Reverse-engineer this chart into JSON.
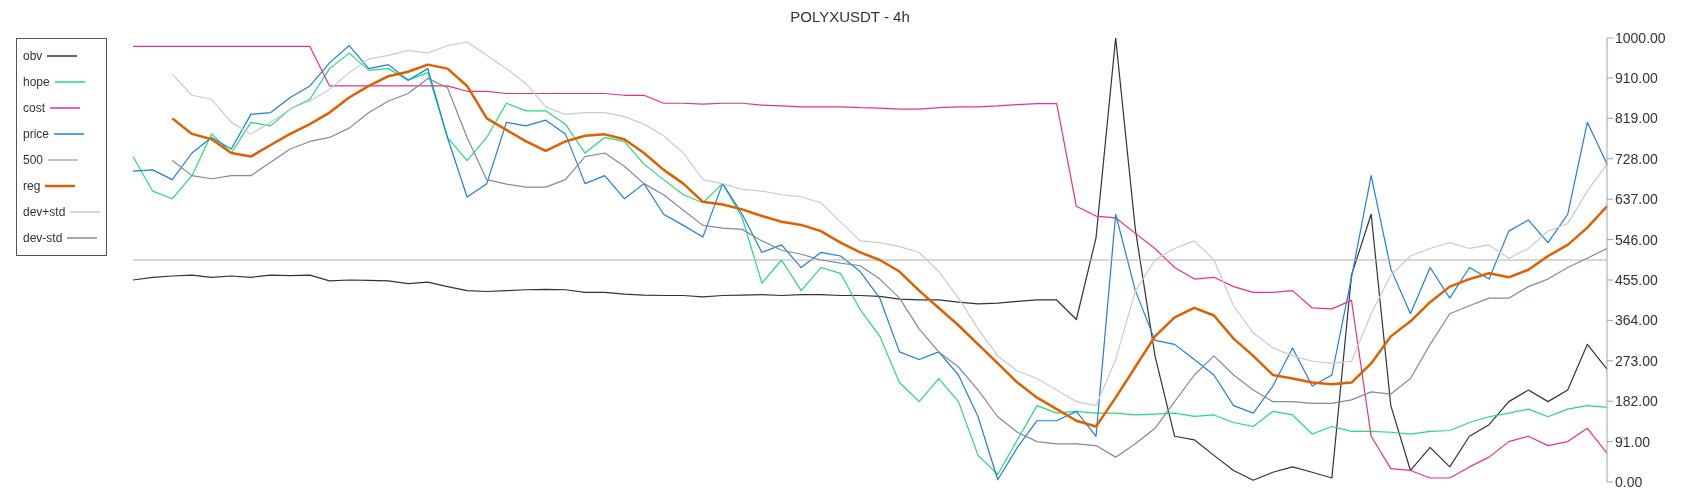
{
  "chart_data": {
    "type": "line",
    "title": "POLYXUSDT - 4h",
    "categories": [
      null,
      null,
      null,
      null,
      null,
      null,
      null,
      null,
      null,
      null,
      null,
      null,
      null,
      null,
      null,
      null,
      null,
      null,
      null,
      null,
      null,
      null,
      null,
      null,
      null,
      null,
      null,
      null,
      null,
      null,
      null,
      null,
      null,
      null,
      null,
      null,
      null,
      null,
      null,
      null,
      null,
      null,
      null,
      null,
      null,
      null,
      null,
      null,
      null,
      null,
      null,
      null,
      null,
      null,
      null,
      null,
      null,
      null,
      null,
      null,
      null,
      null,
      null,
      null,
      null,
      null,
      null,
      null,
      null,
      null,
      null,
      null,
      null,
      null,
      null,
      null
    ],
    "series": [
      {
        "name": "obv",
        "color": "#333333",
        "values": [
          455,
          461,
          464,
          466,
          461,
          464,
          461,
          466,
          465,
          466,
          453,
          455,
          454,
          453,
          447,
          450,
          440,
          431,
          429,
          431,
          433,
          434,
          433,
          427,
          427,
          423,
          421,
          420,
          420,
          417,
          420,
          421,
          422,
          420,
          422,
          422,
          420,
          420,
          418,
          412,
          410,
          410,
          405,
          401,
          403,
          407,
          410,
          410,
          366,
          550,
          1000,
          569,
          284,
          103,
          95,
          60,
          26,
          4,
          22,
          34,
          22,
          9,
          466,
          603,
          172,
          26,
          78,
          34,
          103,
          129,
          181,
          207,
          181,
          207,
          310,
          254
        ]
      },
      {
        "name": "hope",
        "color": "#22dd77",
        "values": [
          733,
          655,
          638,
          690,
          784,
          741,
          810,
          802,
          840,
          862,
          931,
          966,
          927,
          931,
          905,
          922,
          776,
          724,
          776,
          853,
          836,
          836,
          806,
          741,
          776,
          767,
          716,
          681,
          647,
          629,
          672,
          595,
          448,
          500,
          431,
          483,
          470,
          388,
          328,
          224,
          181,
          233,
          181,
          60,
          17,
          95,
          172,
          155,
          159,
          155,
          155,
          151,
          153,
          155,
          148,
          151,
          134,
          125,
          159,
          151,
          108,
          125,
          114,
          114,
          112,
          108,
          114,
          116,
          134,
          147,
          155,
          164,
          147,
          164,
          172,
          168
        ]
      },
      {
        "name": "cost",
        "color": "#e6338a",
        "values": [
          981,
          981,
          981,
          981,
          981,
          981,
          981,
          981,
          981,
          981,
          892,
          892,
          892,
          892,
          892,
          892,
          892,
          880,
          880,
          875,
          875,
          875,
          875,
          875,
          875,
          871,
          871,
          853,
          853,
          851,
          853,
          853,
          849,
          847,
          845,
          845,
          845,
          843,
          842,
          840,
          840,
          843,
          845,
          845,
          847,
          850,
          852,
          852,
          621,
          599,
          595,
          560,
          526,
          483,
          457,
          461,
          440,
          427,
          427,
          431,
          392,
          390,
          409,
          103,
          30,
          26,
          9,
          9,
          34,
          56,
          91,
          103,
          82,
          91,
          121,
          65
        ]
      },
      {
        "name": "price",
        "color": "#1e7fe0",
        "values": [
          700,
          703,
          681,
          741,
          776,
          750,
          828,
          832,
          866,
          892,
          944,
          983,
          931,
          940,
          905,
          931,
          776,
          642,
          672,
          810,
          802,
          815,
          784,
          672,
          690,
          638,
          672,
          603,
          578,
          552,
          672,
          603,
          517,
          534,
          483,
          517,
          509,
          474,
          414,
          293,
          276,
          293,
          241,
          147,
          5,
          78,
          138,
          138,
          159,
          103,
          603,
          431,
          319,
          310,
          276,
          241,
          172,
          155,
          216,
          302,
          216,
          241,
          461,
          690,
          480,
          379,
          483,
          414,
          483,
          457,
          565,
          590,
          539,
          603,
          810,
          716
        ]
      },
      {
        "name": "500",
        "color": "#b0b0b0",
        "values": [
          500,
          500,
          500,
          500,
          500,
          500,
          500,
          500,
          500,
          500,
          500,
          500,
          500,
          500,
          500,
          500,
          500,
          500,
          500,
          500,
          500,
          500,
          500,
          500,
          500,
          500,
          500,
          500,
          500,
          500,
          500,
          500,
          500,
          500,
          500,
          500,
          500,
          500,
          500,
          500,
          500,
          500,
          500,
          500,
          500,
          500,
          500,
          500,
          500,
          500,
          500,
          500,
          500,
          500,
          500,
          500,
          500,
          500,
          500,
          500,
          500,
          500,
          500,
          500,
          500,
          500,
          500,
          500,
          500,
          500,
          500,
          500,
          500,
          500,
          500,
          500
        ]
      },
      {
        "name": "reg",
        "color": "#e06000",
        "values": [
          null,
          null,
          819,
          784,
          772,
          741,
          733,
          759,
          784,
          806,
          832,
          866,
          892,
          914,
          924,
          940,
          931,
          892,
          819,
          793,
          767,
          746,
          767,
          780,
          783,
          772,
          741,
          703,
          672,
          631,
          625,
          614,
          599,
          586,
          579,
          565,
          539,
          517,
          500,
          474,
          431,
          392,
          353,
          310,
          267,
          224,
          190,
          164,
          138,
          125,
          190,
          259,
          328,
          371,
          392,
          375,
          323,
          284,
          241,
          233,
          224,
          220,
          224,
          267,
          328,
          362,
          405,
          440,
          457,
          470,
          461,
          478,
          509,
          534,
          573,
          621
        ]
      },
      {
        "name": "dev+std",
        "color": "#c8ccd0",
        "values": [
          null,
          null,
          918,
          871,
          862,
          810,
          784,
          810,
          840,
          858,
          884,
          922,
          953,
          961,
          972,
          966,
          983,
          991,
          961,
          931,
          897,
          845,
          828,
          832,
          832,
          823,
          806,
          780,
          741,
          681,
          672,
          659,
          655,
          647,
          642,
          629,
          586,
          543,
          539,
          530,
          517,
          474,
          414,
          345,
          284,
          250,
          233,
          207,
          181,
          172,
          276,
          430,
          500,
          526,
          543,
          500,
          397,
          336,
          302,
          284,
          272,
          267,
          272,
          379,
          466,
          509,
          526,
          539,
          526,
          534,
          504,
          526,
          565,
          582,
          655,
          716
        ]
      },
      {
        "name": "dev-std",
        "color": "#7f8c99",
        "values": [
          null,
          null,
          724,
          690,
          683,
          690,
          690,
          720,
          750,
          767,
          776,
          797,
          832,
          858,
          875,
          909,
          888,
          776,
          681,
          671,
          664,
          664,
          681,
          733,
          741,
          711,
          672,
          647,
          612,
          578,
          572,
          569,
          543,
          522,
          513,
          500,
          493,
          487,
          457,
          414,
          345,
          293,
          259,
          207,
          147,
          112,
          91,
          86,
          86,
          82,
          56,
          86,
          121,
          181,
          241,
          284,
          241,
          207,
          181,
          181,
          177,
          177,
          185,
          203,
          198,
          233,
          310,
          379,
          397,
          414,
          414,
          440,
          457,
          483,
          504,
          526
        ]
      }
    ],
    "ylim": [
      0,
      1000
    ],
    "yticks": [
      {
        "value": 0,
        "label": "0.00"
      },
      {
        "value": 91,
        "label": "91.00"
      },
      {
        "value": 182,
        "label": "182.00"
      },
      {
        "value": 273,
        "label": "273.00"
      },
      {
        "value": 364,
        "label": "364.00"
      },
      {
        "value": 455,
        "label": "455.00"
      },
      {
        "value": 546,
        "label": "546.00"
      },
      {
        "value": 637,
        "label": "637.00"
      },
      {
        "value": 728,
        "label": "728.00"
      },
      {
        "value": 819,
        "label": "819.00"
      },
      {
        "value": 910,
        "label": "910.00"
      },
      {
        "value": 1000,
        "label": "1000.00"
      }
    ],
    "tick_labels": "y",
    "legend": "top left",
    "grid": false
  }
}
